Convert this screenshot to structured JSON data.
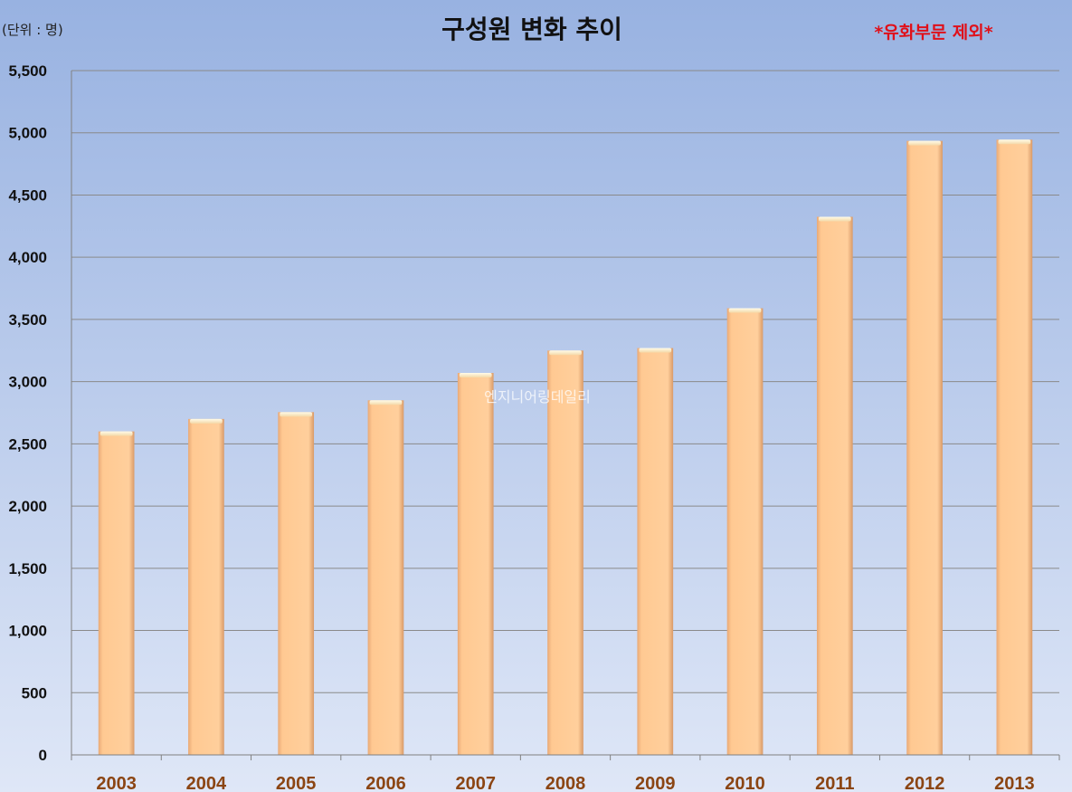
{
  "chart_data": {
    "type": "bar",
    "title": "구성원 변화 추이",
    "unit_label": "(단위 : 명)",
    "note": "*유화부문 제외*",
    "watermark": "엔지니어링데일리",
    "categories": [
      "2003",
      "2004",
      "2005",
      "2006",
      "2007",
      "2008",
      "2009",
      "2010",
      "2011",
      "2012",
      "2013"
    ],
    "values": [
      2600,
      2700,
      2755,
      2850,
      3070,
      3250,
      3270,
      3590,
      4325,
      4935,
      4945
    ],
    "ylim": [
      0,
      5500
    ],
    "yticks": [
      "0",
      "500",
      "1,000",
      "1,500",
      "2,000",
      "2,500",
      "3,000",
      "3,500",
      "4,000",
      "4,500",
      "5,000",
      "5,500"
    ],
    "ytick_values": [
      0,
      500,
      1000,
      1500,
      2000,
      2500,
      3000,
      3500,
      4000,
      4500,
      5000,
      5500
    ],
    "xlabel": "",
    "ylabel": "",
    "grid": true,
    "bar_color": "#ffc992",
    "bar_top_color": "#fff6dc",
    "background_top": "#98b2e1",
    "background_bottom": "#dfe7f7",
    "xtick_color": "#8b4513",
    "note_color": "#e0101a"
  }
}
